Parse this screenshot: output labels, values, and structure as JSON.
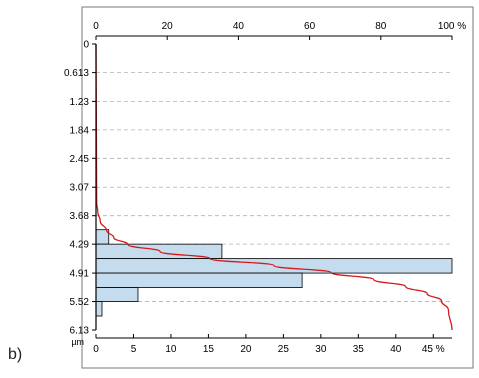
{
  "panel_label": "b)",
  "chart_data": {
    "type": "bar",
    "orientation": "horizontal",
    "y_axis": {
      "ticks": [
        "0",
        "0.613",
        "1.23",
        "1.84",
        "2.45",
        "3.07",
        "3.68",
        "4.29",
        "4.91",
        "5.52",
        "6.13"
      ],
      "unit_label": "µm",
      "range": [
        0,
        6.13
      ]
    },
    "x_axis_bottom": {
      "ticks": [
        "0",
        "5",
        "10",
        "15",
        "20",
        "25",
        "30",
        "35",
        "40",
        "45 %"
      ],
      "range": [
        0,
        47.5
      ]
    },
    "x_axis_top": {
      "ticks": [
        "0",
        "20",
        "40",
        "60",
        "80",
        "100 %"
      ],
      "range": [
        0,
        100
      ]
    },
    "bins": [
      {
        "from": 3.98,
        "to": 4.29,
        "percent": 1.7
      },
      {
        "from": 4.29,
        "to": 4.6,
        "percent": 16.8
      },
      {
        "from": 4.6,
        "to": 4.91,
        "percent": 47.5
      },
      {
        "from": 4.91,
        "to": 5.22,
        "percent": 27.5
      },
      {
        "from": 5.22,
        "to": 5.52,
        "percent": 5.6
      },
      {
        "from": 5.52,
        "to": 5.83,
        "percent": 0.8
      }
    ],
    "cumulative_curve": [
      [
        0,
        0
      ],
      [
        3.4,
        0.2
      ],
      [
        3.6,
        0.5
      ],
      [
        3.8,
        1.2
      ],
      [
        4.0,
        3
      ],
      [
        4.15,
        5
      ],
      [
        4.3,
        9
      ],
      [
        4.45,
        18
      ],
      [
        4.6,
        32
      ],
      [
        4.75,
        50
      ],
      [
        4.9,
        66
      ],
      [
        5.05,
        78
      ],
      [
        5.2,
        87
      ],
      [
        5.35,
        93
      ],
      [
        5.5,
        97
      ],
      [
        5.7,
        99
      ],
      [
        6.13,
        100
      ]
    ],
    "grid": "dashed horizontal",
    "colors": {
      "bar_fill": "#c5dcee",
      "bar_stroke": "#000000",
      "curve": "#d6191b",
      "grid": "#b0b0b0"
    }
  }
}
